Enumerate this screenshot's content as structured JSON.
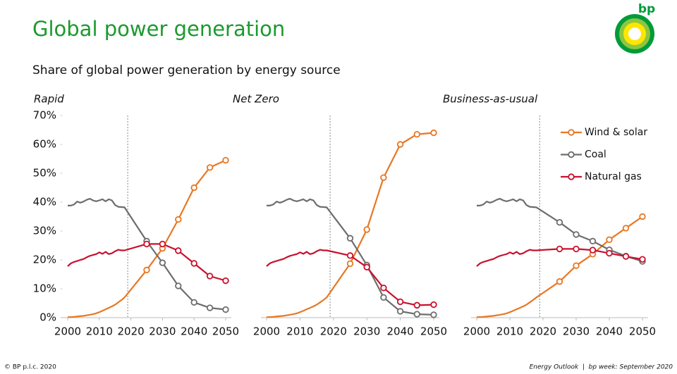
{
  "title": "Global power generation",
  "subtitle": "Share of global power generation by energy source",
  "logo_text": "bp",
  "footer_left": "© BP p.l.c. 2020",
  "footer_right": "Energy Outlook  |  bp week: September 2020",
  "chart_data": [
    {
      "type": "line",
      "title": "Rapid",
      "x": [
        2000,
        2001,
        2002,
        2003,
        2004,
        2005,
        2006,
        2007,
        2008,
        2009,
        2010,
        2011,
        2012,
        2013,
        2014,
        2015,
        2016,
        2017,
        2018,
        2025,
        2030,
        2035,
        2040,
        2045,
        2050
      ],
      "series": [
        {
          "name": "Wind & solar",
          "color": "#e87722",
          "values": [
            0.2,
            0.2,
            0.3,
            0.4,
            0.5,
            0.6,
            0.8,
            1.0,
            1.2,
            1.5,
            1.9,
            2.4,
            2.9,
            3.4,
            3.9,
            4.5,
            5.3,
            6.1,
            7.0,
            16.5,
            24,
            34,
            45,
            52,
            54.5
          ]
        },
        {
          "name": "Coal",
          "color": "#6d6d6d",
          "values": [
            38.8,
            38.8,
            39.2,
            40.2,
            39.8,
            40.2,
            40.8,
            41.2,
            40.6,
            40.3,
            40.6,
            41.0,
            40.3,
            41.0,
            40.6,
            39.0,
            38.4,
            38.3,
            38.2,
            26.5,
            19,
            11,
            5.3,
            3.4,
            2.8
          ]
        },
        {
          "name": "Natural gas",
          "color": "#c8102e",
          "values": [
            17.8,
            18.8,
            19.3,
            19.6,
            20.0,
            20.3,
            20.9,
            21.4,
            21.7,
            22.0,
            22.6,
            22.1,
            22.8,
            22.0,
            22.3,
            23.0,
            23.5,
            23.3,
            23.3,
            25.5,
            25.5,
            23.2,
            18.8,
            14.4,
            12.8
          ]
        }
      ],
      "xlim": [
        2000,
        2050
      ],
      "xticks": [
        2000,
        2010,
        2020,
        2030,
        2040,
        2050
      ],
      "ylim": [
        0,
        70
      ],
      "yticks": [
        {
          "value": 0,
          "label": "0%"
        },
        {
          "value": 10,
          "label": "10%"
        },
        {
          "value": 20,
          "label": "20%"
        },
        {
          "value": 30,
          "label": "30%"
        },
        {
          "value": 40,
          "label": "40%"
        },
        {
          "value": 50,
          "label": "50%"
        },
        {
          "value": 60,
          "label": "60%"
        },
        {
          "value": 70,
          "label": "70%"
        }
      ],
      "reference_x": 2019
    },
    {
      "type": "line",
      "title": "Net Zero",
      "x": [
        2000,
        2001,
        2002,
        2003,
        2004,
        2005,
        2006,
        2007,
        2008,
        2009,
        2010,
        2011,
        2012,
        2013,
        2014,
        2015,
        2016,
        2017,
        2018,
        2025,
        2030,
        2035,
        2040,
        2045,
        2050
      ],
      "series": [
        {
          "name": "Wind & solar",
          "color": "#e87722",
          "values": [
            0.2,
            0.2,
            0.3,
            0.4,
            0.5,
            0.6,
            0.8,
            1.0,
            1.2,
            1.5,
            1.9,
            2.4,
            2.9,
            3.4,
            3.9,
            4.5,
            5.3,
            6.1,
            7.0,
            18.7,
            30.5,
            48.5,
            60,
            63.5,
            64
          ]
        },
        {
          "name": "Coal",
          "color": "#6d6d6d",
          "values": [
            38.8,
            38.8,
            39.2,
            40.2,
            39.8,
            40.2,
            40.8,
            41.2,
            40.6,
            40.3,
            40.6,
            41.0,
            40.3,
            41.0,
            40.6,
            39.0,
            38.4,
            38.3,
            38.2,
            27.5,
            18.2,
            7,
            2.2,
            1.2,
            1
          ]
        },
        {
          "name": "Natural gas",
          "color": "#c8102e",
          "values": [
            17.8,
            18.8,
            19.3,
            19.6,
            20.0,
            20.3,
            20.9,
            21.4,
            21.7,
            22.0,
            22.6,
            22.1,
            22.8,
            22.0,
            22.3,
            23.0,
            23.5,
            23.3,
            23.3,
            21.5,
            17.5,
            10.3,
            5.5,
            4.3,
            4.5
          ]
        }
      ],
      "xlim": [
        2000,
        2050
      ],
      "xticks": [
        2000,
        2010,
        2020,
        2030,
        2040,
        2050
      ],
      "ylim": [
        0,
        70
      ],
      "reference_x": 2019
    },
    {
      "type": "line",
      "title": "Business-as-usual",
      "x": [
        2000,
        2001,
        2002,
        2003,
        2004,
        2005,
        2006,
        2007,
        2008,
        2009,
        2010,
        2011,
        2012,
        2013,
        2014,
        2015,
        2016,
        2017,
        2018,
        2025,
        2030,
        2035,
        2040,
        2045,
        2050
      ],
      "series": [
        {
          "name": "Wind & solar",
          "color": "#e87722",
          "values": [
            0.2,
            0.2,
            0.3,
            0.4,
            0.5,
            0.6,
            0.8,
            1.0,
            1.2,
            1.5,
            1.9,
            2.4,
            2.9,
            3.4,
            3.9,
            4.5,
            5.3,
            6.1,
            7.0,
            12.5,
            18,
            22,
            27,
            31,
            35
          ]
        },
        {
          "name": "Coal",
          "color": "#6d6d6d",
          "values": [
            38.8,
            38.8,
            39.2,
            40.2,
            39.8,
            40.2,
            40.8,
            41.2,
            40.6,
            40.3,
            40.6,
            41.0,
            40.3,
            41.0,
            40.6,
            39.0,
            38.4,
            38.3,
            38.2,
            33,
            28.8,
            26.5,
            23.5,
            21.3,
            19.5
          ]
        },
        {
          "name": "Natural gas",
          "color": "#c8102e",
          "values": [
            17.8,
            18.8,
            19.3,
            19.6,
            20.0,
            20.3,
            20.9,
            21.4,
            21.7,
            22.0,
            22.6,
            22.1,
            22.8,
            22.0,
            22.3,
            23.0,
            23.5,
            23.3,
            23.3,
            23.8,
            23.8,
            23.4,
            22.3,
            21.2,
            20.2
          ]
        }
      ],
      "xlim": [
        2000,
        2050
      ],
      "xticks": [
        2000,
        2010,
        2020,
        2030,
        2040,
        2050
      ],
      "ylim": [
        0,
        70
      ],
      "reference_x": 2019,
      "legend": "upper right"
    }
  ]
}
